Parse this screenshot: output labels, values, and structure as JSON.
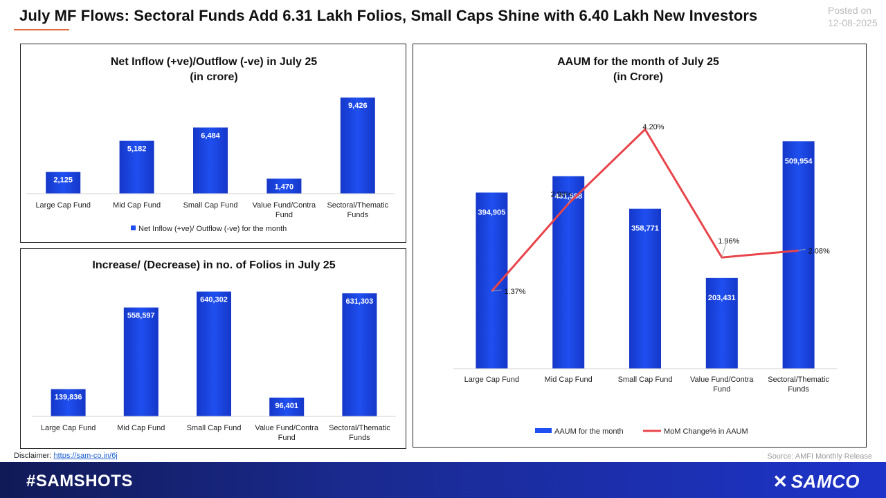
{
  "headline": "July MF Flows: Sectoral Funds Add 6.31 Lakh Folios, Small Caps Shine with 6.40 Lakh New Investors",
  "posted": {
    "label": "Posted on",
    "date": "12-08-2025"
  },
  "disclaimer": {
    "label": "Disclaimer:",
    "link": "https://sam-co.in/6j"
  },
  "source": "Source: AMFI Monthly Release",
  "footer": {
    "hashtag": "#SAMSHOTS",
    "brand": "SAMCO",
    "brand_icon": "samco-logo-icon"
  },
  "colors": {
    "bar": "#1f4ff0",
    "line": "#e8444a",
    "footer": "#1a2a8f"
  },
  "chart_data": [
    {
      "type": "bar",
      "title": [
        "Net Inflow (+ve)/Outflow (-ve) in July 25",
        "(in crore)"
      ],
      "categories": [
        "Large Cap Fund",
        "Mid Cap Fund",
        "Small Cap Fund",
        "Value Fund/Contra Fund",
        "Sectoral/Thematic Funds"
      ],
      "series": [
        {
          "name": "Net Inflow (+ve)/ Outflow (-ve) for the month",
          "values": [
            2125,
            5182,
            6484,
            1470,
            9426
          ]
        }
      ],
      "value_labels": [
        "2,125",
        "5,182",
        "6,484",
        "1,470",
        "9,426"
      ],
      "ylim": [
        0,
        9700
      ],
      "legend": "bottom",
      "grid": false
    },
    {
      "type": "bar",
      "title": [
        "Increase/ (Decrease) in no. of Folios in July 25"
      ],
      "categories": [
        "Large Cap Fund",
        "Mid Cap Fund",
        "Small Cap Fund",
        "Value Fund/Contra Fund",
        "Sectoral/Thematic Funds"
      ],
      "series": [
        {
          "values": [
            139836,
            558597,
            640302,
            96401,
            631303
          ]
        }
      ],
      "value_labels": [
        "139,836",
        "558,597",
        "640,302",
        "96,401",
        "631,303"
      ],
      "ylim": [
        0,
        660000
      ],
      "legend": "none",
      "grid": false
    },
    {
      "type": "bar",
      "title": [
        "AAUM for the month of July 25",
        "(in Crore)"
      ],
      "categories": [
        "Large Cap Fund",
        "Mid Cap Fund",
        "Small Cap Fund",
        "Value Fund/Contra Fund",
        "Sectoral/Thematic Funds"
      ],
      "series": [
        {
          "name": "AAUM for the month",
          "type": "bar",
          "values": [
            394905,
            431588,
            358771,
            203431,
            509954
          ],
          "labels": [
            "394,905",
            "431,588",
            "358,771",
            "203,431",
            "509,954"
          ]
        },
        {
          "name": "MoM Change% in AAUM",
          "type": "line",
          "values": [
            1.37,
            2.9,
            4.2,
            1.96,
            2.08
          ],
          "labels": [
            "1.37%",
            "2.90%",
            "4.20%",
            "1.96%",
            "2.08%"
          ]
        }
      ],
      "ylim": [
        0,
        560000
      ],
      "ylim_secondary": [
        0,
        5
      ],
      "legend": "bottom",
      "grid": false
    }
  ]
}
